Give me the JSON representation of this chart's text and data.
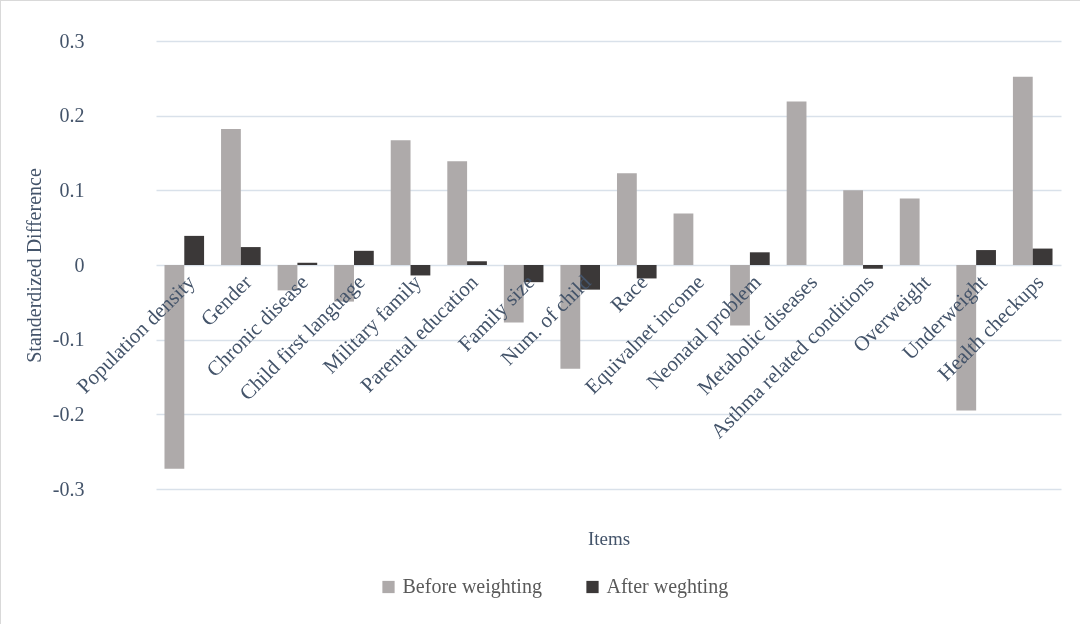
{
  "chart_data": {
    "type": "bar",
    "xlabel": "Items",
    "ylabel": "Standerdized Difference",
    "categories": [
      "Population density",
      "Gender",
      "Chronic disease",
      "Child first language",
      "Military family",
      "Parental education",
      "Family size",
      "Num. of child",
      "Race",
      "Equivalnet income",
      "Neonatal problem",
      "Metabolic diseases",
      "Asthma related conditions",
      "Overweight",
      "Underweight",
      "Health checkups"
    ],
    "series": [
      {
        "name": "Before weighting",
        "color": "#aeaaaa",
        "values": [
          -0.273,
          0.182,
          -0.034,
          -0.049,
          0.167,
          0.139,
          -0.077,
          -0.139,
          0.123,
          0.069,
          -0.081,
          0.219,
          0.1,
          0.089,
          -0.195,
          0.252
        ]
      },
      {
        "name": "After weghting",
        "color": "#3b3838",
        "values": [
          0.039,
          0.024,
          0.003,
          0.019,
          -0.014,
          0.005,
          -0.023,
          -0.033,
          -0.018,
          null,
          0.017,
          null,
          -0.005,
          null,
          0.02,
          0.022
        ]
      }
    ],
    "ylim": [
      -0.3,
      0.3
    ],
    "yticks": [
      -0.3,
      -0.2,
      -0.1,
      0,
      0.1,
      0.2,
      0.3
    ],
    "grid": "y",
    "legend": "bottom"
  }
}
